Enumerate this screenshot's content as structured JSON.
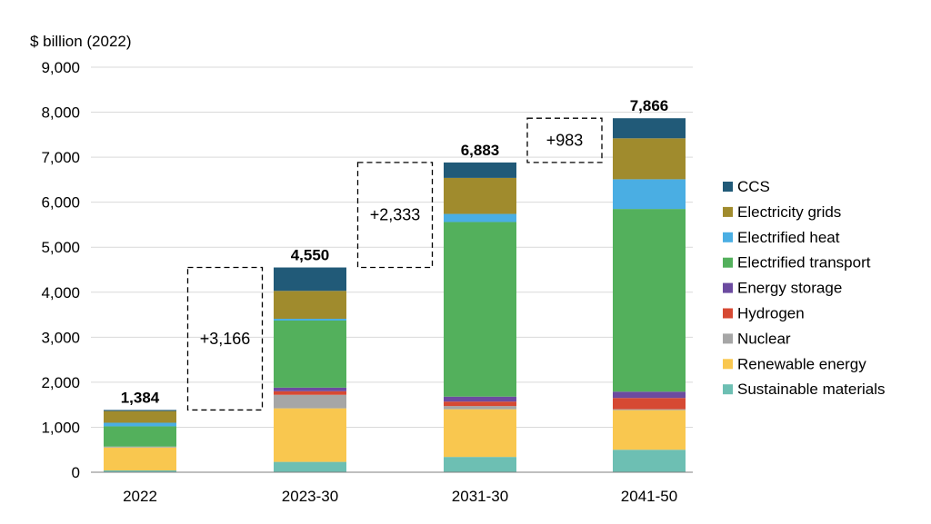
{
  "chart_data": {
    "type": "bar",
    "stacked": true,
    "ylabel": "$ billion (2022)",
    "ylim": [
      0,
      9000
    ],
    "yticks": [
      "0",
      "1,000",
      "2,000",
      "3,000",
      "4,000",
      "5,000",
      "6,000",
      "7,000",
      "8,000",
      "9,000"
    ],
    "grid": true,
    "legend_position": "right",
    "categories": [
      "2022",
      "2023-30",
      "2031-30",
      "2041-50"
    ],
    "totals": [
      "1,384",
      "4,550",
      "6,883",
      "7,866"
    ],
    "deltas": [
      "+3,166",
      "+2,333",
      "+983"
    ],
    "series": [
      {
        "name": "Sustainable materials",
        "color": "#6dbfb3",
        "values": [
          40,
          230,
          340,
          500
        ]
      },
      {
        "name": "Renewable energy",
        "color": "#f9c74f",
        "values": [
          510,
          1190,
          1060,
          880
        ]
      },
      {
        "name": "Nuclear",
        "color": "#a6a6a6",
        "values": [
          20,
          300,
          70,
          20
        ]
      },
      {
        "name": "Hydrogen",
        "color": "#d64933",
        "values": [
          0,
          80,
          100,
          250
        ]
      },
      {
        "name": "Energy storage",
        "color": "#6c4ba0",
        "values": [
          0,
          80,
          110,
          140
        ]
      },
      {
        "name": "Electrified transport",
        "color": "#53b05c",
        "values": [
          450,
          1490,
          3880,
          4060
        ]
      },
      {
        "name": "Electrified heat",
        "color": "#4aaee3",
        "values": [
          80,
          40,
          180,
          660
        ]
      },
      {
        "name": "Electricity grids",
        "color": "#a08b2d",
        "values": [
          260,
          620,
          800,
          910
        ]
      },
      {
        "name": "CCS",
        "color": "#215a78",
        "values": [
          24,
          520,
          343,
          446
        ]
      }
    ]
  }
}
